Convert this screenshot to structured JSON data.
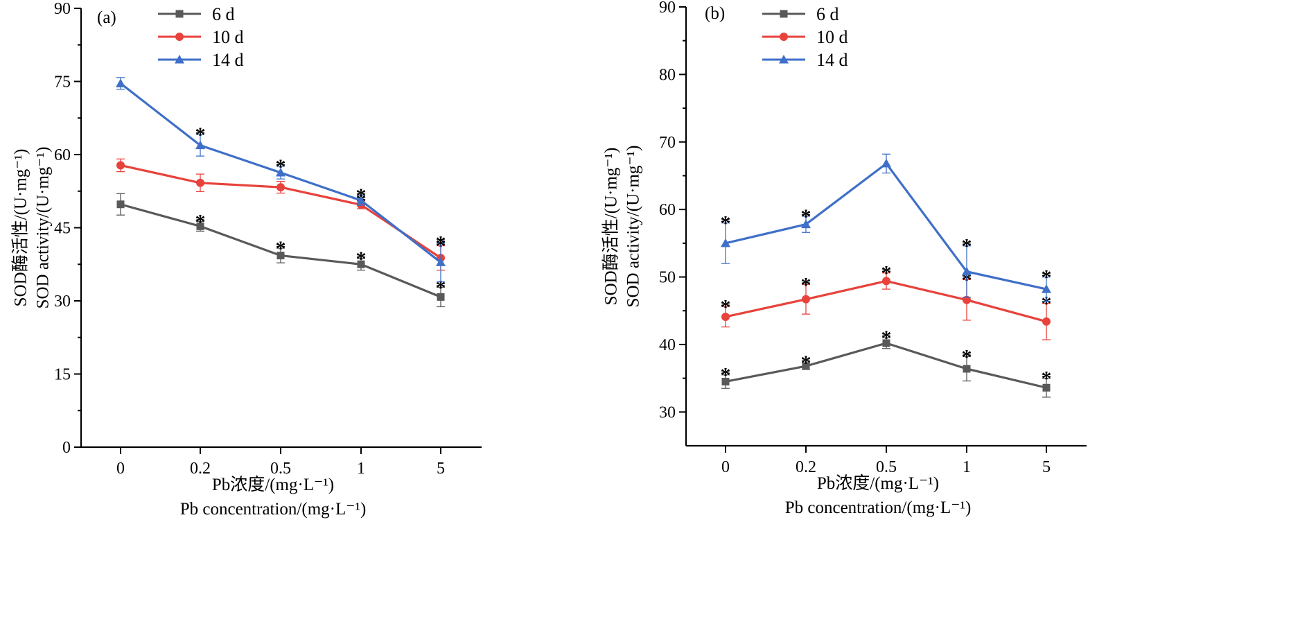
{
  "chart_data": [
    {
      "type": "line",
      "panel_label": "(a)",
      "categories": [
        "0",
        "0.2",
        "0.5",
        "1",
        "5"
      ],
      "ylabel_lines": [
        "SOD酶活性/(U·mg⁻¹)",
        "SOD activity/(U·mg⁻¹)"
      ],
      "xlabel_lines": [
        "Pb浓度/(mg·L⁻¹)",
        "Pb concentration/(mg·L⁻¹)"
      ],
      "ylim": [
        0,
        90
      ],
      "yticks": [
        0,
        15,
        30,
        45,
        60,
        75,
        90
      ],
      "legend_position": "top-left",
      "series": [
        {
          "name": "6 d",
          "color": "#595959",
          "marker": "square",
          "values": [
            49.8,
            45.3,
            39.3,
            37.5,
            30.8
          ],
          "errors": [
            2.2,
            1.0,
            1.5,
            1.2,
            2.0
          ],
          "significant": [
            false,
            true,
            true,
            true,
            true
          ]
        },
        {
          "name": "10 d",
          "color": "#e8423c",
          "marker": "circle",
          "values": [
            57.8,
            54.2,
            53.3,
            49.7,
            38.8
          ],
          "errors": [
            1.3,
            1.8,
            1.2,
            0.8,
            2.5
          ],
          "significant": [
            false,
            false,
            false,
            true,
            true
          ]
        },
        {
          "name": "14 d",
          "color": "#3f6fc8",
          "marker": "triangle",
          "values": [
            74.6,
            61.9,
            56.3,
            50.6,
            37.9
          ],
          "errors": [
            1.2,
            2.2,
            1.3,
            1.0,
            4.0
          ],
          "significant": [
            false,
            true,
            true,
            true,
            true
          ]
        }
      ]
    },
    {
      "type": "line",
      "panel_label": "(b)",
      "categories": [
        "0",
        "0.2",
        "0.5",
        "1",
        "5"
      ],
      "ylabel_lines": [
        "SOD酶活性/(U·mg⁻¹)",
        "SOD activity/(U·mg⁻¹)"
      ],
      "xlabel_lines": [
        "Pb浓度/(mg·L⁻¹)",
        "Pb concentration/(mg·L⁻¹)"
      ],
      "ylim": [
        25,
        90
      ],
      "yticks": [
        30,
        40,
        50,
        60,
        70,
        80,
        90
      ],
      "legend_position": "top-left",
      "series": [
        {
          "name": "6 d",
          "color": "#595959",
          "marker": "square",
          "values": [
            34.5,
            36.8,
            40.2,
            36.4,
            33.6
          ],
          "errors": [
            1.0,
            0.5,
            0.8,
            1.8,
            1.4
          ],
          "significant": [
            true,
            true,
            true,
            true,
            true
          ]
        },
        {
          "name": "10 d",
          "color": "#e8423c",
          "marker": "circle",
          "values": [
            44.1,
            46.7,
            49.4,
            46.6,
            43.4
          ],
          "errors": [
            1.5,
            2.2,
            1.2,
            3.0,
            2.7
          ],
          "significant": [
            true,
            true,
            true,
            true,
            true
          ]
        },
        {
          "name": "14 d",
          "color": "#3f6fc8",
          "marker": "triangle",
          "values": [
            55.0,
            57.8,
            66.8,
            50.8,
            48.2
          ],
          "errors": [
            3.0,
            1.2,
            1.4,
            3.8,
            1.8
          ],
          "significant": [
            true,
            true,
            false,
            true,
            true
          ]
        }
      ]
    }
  ]
}
